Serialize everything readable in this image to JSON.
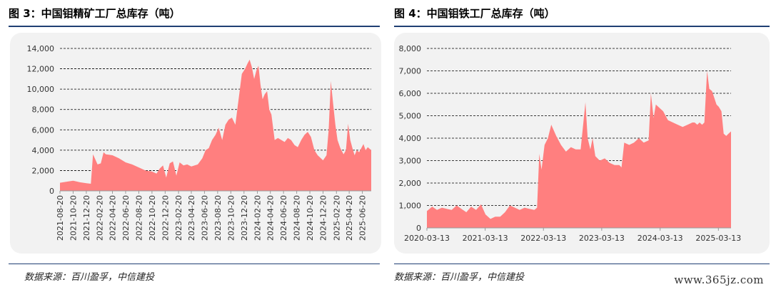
{
  "left_panel": {
    "title": "图 3：中国钼精矿工厂总库存（吨）",
    "source": "数据来源：百川盈孚，中信建投"
  },
  "right_panel": {
    "title": "图 4：中国钼铁工厂总库存（吨）",
    "source": "数据来源：百川盈孚，中信建投"
  },
  "watermark": "www.365jz.com",
  "colors": {
    "area": "#ff7f7f",
    "rule": "#1f3f73",
    "plot_bg": "#f2f2f2"
  },
  "chart_data": [
    {
      "type": "area",
      "title": "中国钼精矿工厂总库存（吨）",
      "ylim": [
        0,
        14000
      ],
      "yticks": [
        "0",
        "2,000",
        "4,000",
        "6,000",
        "8,000",
        "10,000",
        "12,000",
        "14,000"
      ],
      "ytick_values": [
        0,
        2000,
        4000,
        6000,
        8000,
        10000,
        12000,
        14000
      ],
      "xlim": [
        "2021-08-20",
        "2025-07-31"
      ],
      "xticks": [
        "2021-08-20",
        "2021-10-20",
        "2021-12-20",
        "2022-02-20",
        "2022-04-20",
        "2022-06-20",
        "2022-08-20",
        "2022-10-20",
        "2022-12-20",
        "2023-02-20",
        "2023-04-20",
        "2023-06-20",
        "2023-08-20",
        "2023-10-20",
        "2023-12-20",
        "2024-02-20",
        "2024-04-20",
        "2024-06-20",
        "2024-08-20",
        "2024-10-20",
        "2024-12-20",
        "2025-02-20",
        "2025-04-20",
        "2025-06-20"
      ],
      "grid": true,
      "series": [
        {
          "x": [
            "2021-08-20",
            "2021-09-20",
            "2021-10-20",
            "2021-11-20",
            "2021-12-20",
            "2022-01-10",
            "2022-01-20",
            "2022-02-10",
            "2022-02-25",
            "2022-03-10",
            "2022-03-20",
            "2022-04-20",
            "2022-05-20",
            "2022-06-20",
            "2022-07-20",
            "2022-08-20",
            "2022-09-20",
            "2022-10-20",
            "2022-11-10",
            "2022-11-25",
            "2022-12-10",
            "2022-12-25",
            "2023-01-10",
            "2023-01-25",
            "2023-02-10",
            "2023-02-25",
            "2023-03-15",
            "2023-04-01",
            "2023-04-20",
            "2023-05-20",
            "2023-06-10",
            "2023-06-25",
            "2023-07-10",
            "2023-07-25",
            "2023-08-10",
            "2023-08-25",
            "2023-09-10",
            "2023-09-25",
            "2023-10-10",
            "2023-10-25",
            "2023-11-10",
            "2023-11-25",
            "2023-12-10",
            "2023-12-25",
            "2024-01-05",
            "2024-01-15",
            "2024-01-25",
            "2024-02-05",
            "2024-02-15",
            "2024-02-25",
            "2024-03-05",
            "2024-03-15",
            "2024-03-25",
            "2024-04-05",
            "2024-04-15",
            "2024-04-25",
            "2024-05-10",
            "2024-05-25",
            "2024-06-10",
            "2024-06-25",
            "2024-07-10",
            "2024-07-25",
            "2024-08-10",
            "2024-08-25",
            "2024-09-10",
            "2024-09-25",
            "2024-10-10",
            "2024-10-25",
            "2024-11-10",
            "2024-11-25",
            "2024-12-10",
            "2024-12-20",
            "2025-01-05",
            "2025-01-15",
            "2025-01-25",
            "2025-02-05",
            "2025-02-15",
            "2025-02-25",
            "2025-03-10",
            "2025-03-25",
            "2025-04-05",
            "2025-04-15",
            "2025-04-25",
            "2025-05-05",
            "2025-05-15",
            "2025-05-25",
            "2025-06-05",
            "2025-06-15",
            "2025-06-25",
            "2025-07-05",
            "2025-07-15",
            "2025-07-31"
          ],
          "y": [
            800,
            900,
            1000,
            850,
            750,
            700,
            3600,
            2600,
            2700,
            3800,
            3600,
            3500,
            3200,
            2800,
            2600,
            2300,
            2000,
            1900,
            1700,
            2200,
            2500,
            1300,
            2700,
            2900,
            1500,
            2800,
            2500,
            2600,
            2400,
            2600,
            3200,
            4000,
            4200,
            5000,
            5500,
            6200,
            5000,
            6500,
            7000,
            7200,
            6500,
            9000,
            11500,
            12000,
            12500,
            12900,
            12200,
            11000,
            11800,
            12300,
            10500,
            9000,
            9500,
            9800,
            8000,
            7500,
            5000,
            5200,
            5000,
            4800,
            5200,
            5000,
            4500,
            4300,
            5000,
            5500,
            5800,
            5300,
            4000,
            3500,
            3200,
            3000,
            3500,
            6000,
            10800,
            8500,
            6500,
            5000,
            4200,
            3600,
            4000,
            6600,
            5000,
            4200,
            3500,
            4000,
            3800,
            4200,
            4600,
            4000,
            4300,
            4000
          ]
        }
      ]
    },
    {
      "type": "area",
      "title": "中国钼铁工厂总库存（吨）",
      "ylim": [
        0,
        8000
      ],
      "yticks": [
        "0",
        "1,000",
        "2,000",
        "3,000",
        "4,000",
        "5,000",
        "6,000",
        "7,000",
        "8,000"
      ],
      "ytick_values": [
        0,
        1000,
        2000,
        3000,
        4000,
        5000,
        6000,
        7000,
        8000
      ],
      "xlim": [
        "2020-03-13",
        "2025-05-31"
      ],
      "xticks": [
        "2020-03-13",
        "2021-03-13",
        "2022-03-13",
        "2023-03-13",
        "2024-03-13",
        "2025-03-13"
      ],
      "grid": true,
      "series": [
        {
          "x": [
            "2020-03-13",
            "2020-04-15",
            "2020-05-15",
            "2020-06-15",
            "2020-07-15",
            "2020-08-15",
            "2020-09-15",
            "2020-10-15",
            "2020-11-15",
            "2020-12-15",
            "2021-01-15",
            "2021-02-15",
            "2021-03-15",
            "2021-04-15",
            "2021-05-15",
            "2021-06-15",
            "2021-07-15",
            "2021-08-15",
            "2021-09-15",
            "2021-10-15",
            "2021-11-15",
            "2021-12-15",
            "2022-01-15",
            "2022-02-01",
            "2022-02-15",
            "2022-03-01",
            "2022-03-20",
            "2022-04-10",
            "2022-05-01",
            "2022-06-01",
            "2022-07-01",
            "2022-08-01",
            "2022-09-01",
            "2022-10-01",
            "2022-11-01",
            "2022-12-01",
            "2022-12-15",
            "2023-01-01",
            "2023-01-15",
            "2023-02-01",
            "2023-02-15",
            "2023-03-01",
            "2023-04-01",
            "2023-05-01",
            "2023-06-01",
            "2023-07-01",
            "2023-07-15",
            "2023-08-01",
            "2023-09-01",
            "2023-10-01",
            "2023-11-01",
            "2023-12-01",
            "2024-01-01",
            "2024-01-15",
            "2024-02-01",
            "2024-02-15",
            "2024-03-01",
            "2024-04-01",
            "2024-05-01",
            "2024-06-01",
            "2024-07-01",
            "2024-08-01",
            "2024-09-01",
            "2024-10-01",
            "2024-10-15",
            "2024-11-01",
            "2024-11-15",
            "2024-12-01",
            "2024-12-15",
            "2025-01-01",
            "2025-01-15",
            "2025-02-01",
            "2025-02-15",
            "2025-03-01",
            "2025-03-15",
            "2025-04-01",
            "2025-04-15",
            "2025-05-01",
            "2025-05-15",
            "2025-05-31"
          ],
          "y": [
            750,
            950,
            800,
            900,
            850,
            800,
            1000,
            850,
            700,
            950,
            800,
            1050,
            600,
            400,
            500,
            500,
            700,
            1000,
            900,
            800,
            900,
            850,
            800,
            900,
            3300,
            2600,
            3700,
            4000,
            4600,
            4100,
            3700,
            3400,
            3600,
            3500,
            3500,
            5600,
            4000,
            3500,
            4000,
            3200,
            3100,
            3000,
            3100,
            2900,
            2800,
            2800,
            2700,
            3800,
            3700,
            3800,
            4000,
            3800,
            3900,
            6000,
            4900,
            5500,
            5400,
            5200,
            4800,
            4700,
            4600,
            4500,
            4600,
            4700,
            4700,
            4600,
            4700,
            4600,
            4700,
            7000,
            6200,
            6100,
            5800,
            5500,
            5400,
            5200,
            4200,
            4100,
            4200,
            4300
          ]
        }
      ]
    }
  ]
}
